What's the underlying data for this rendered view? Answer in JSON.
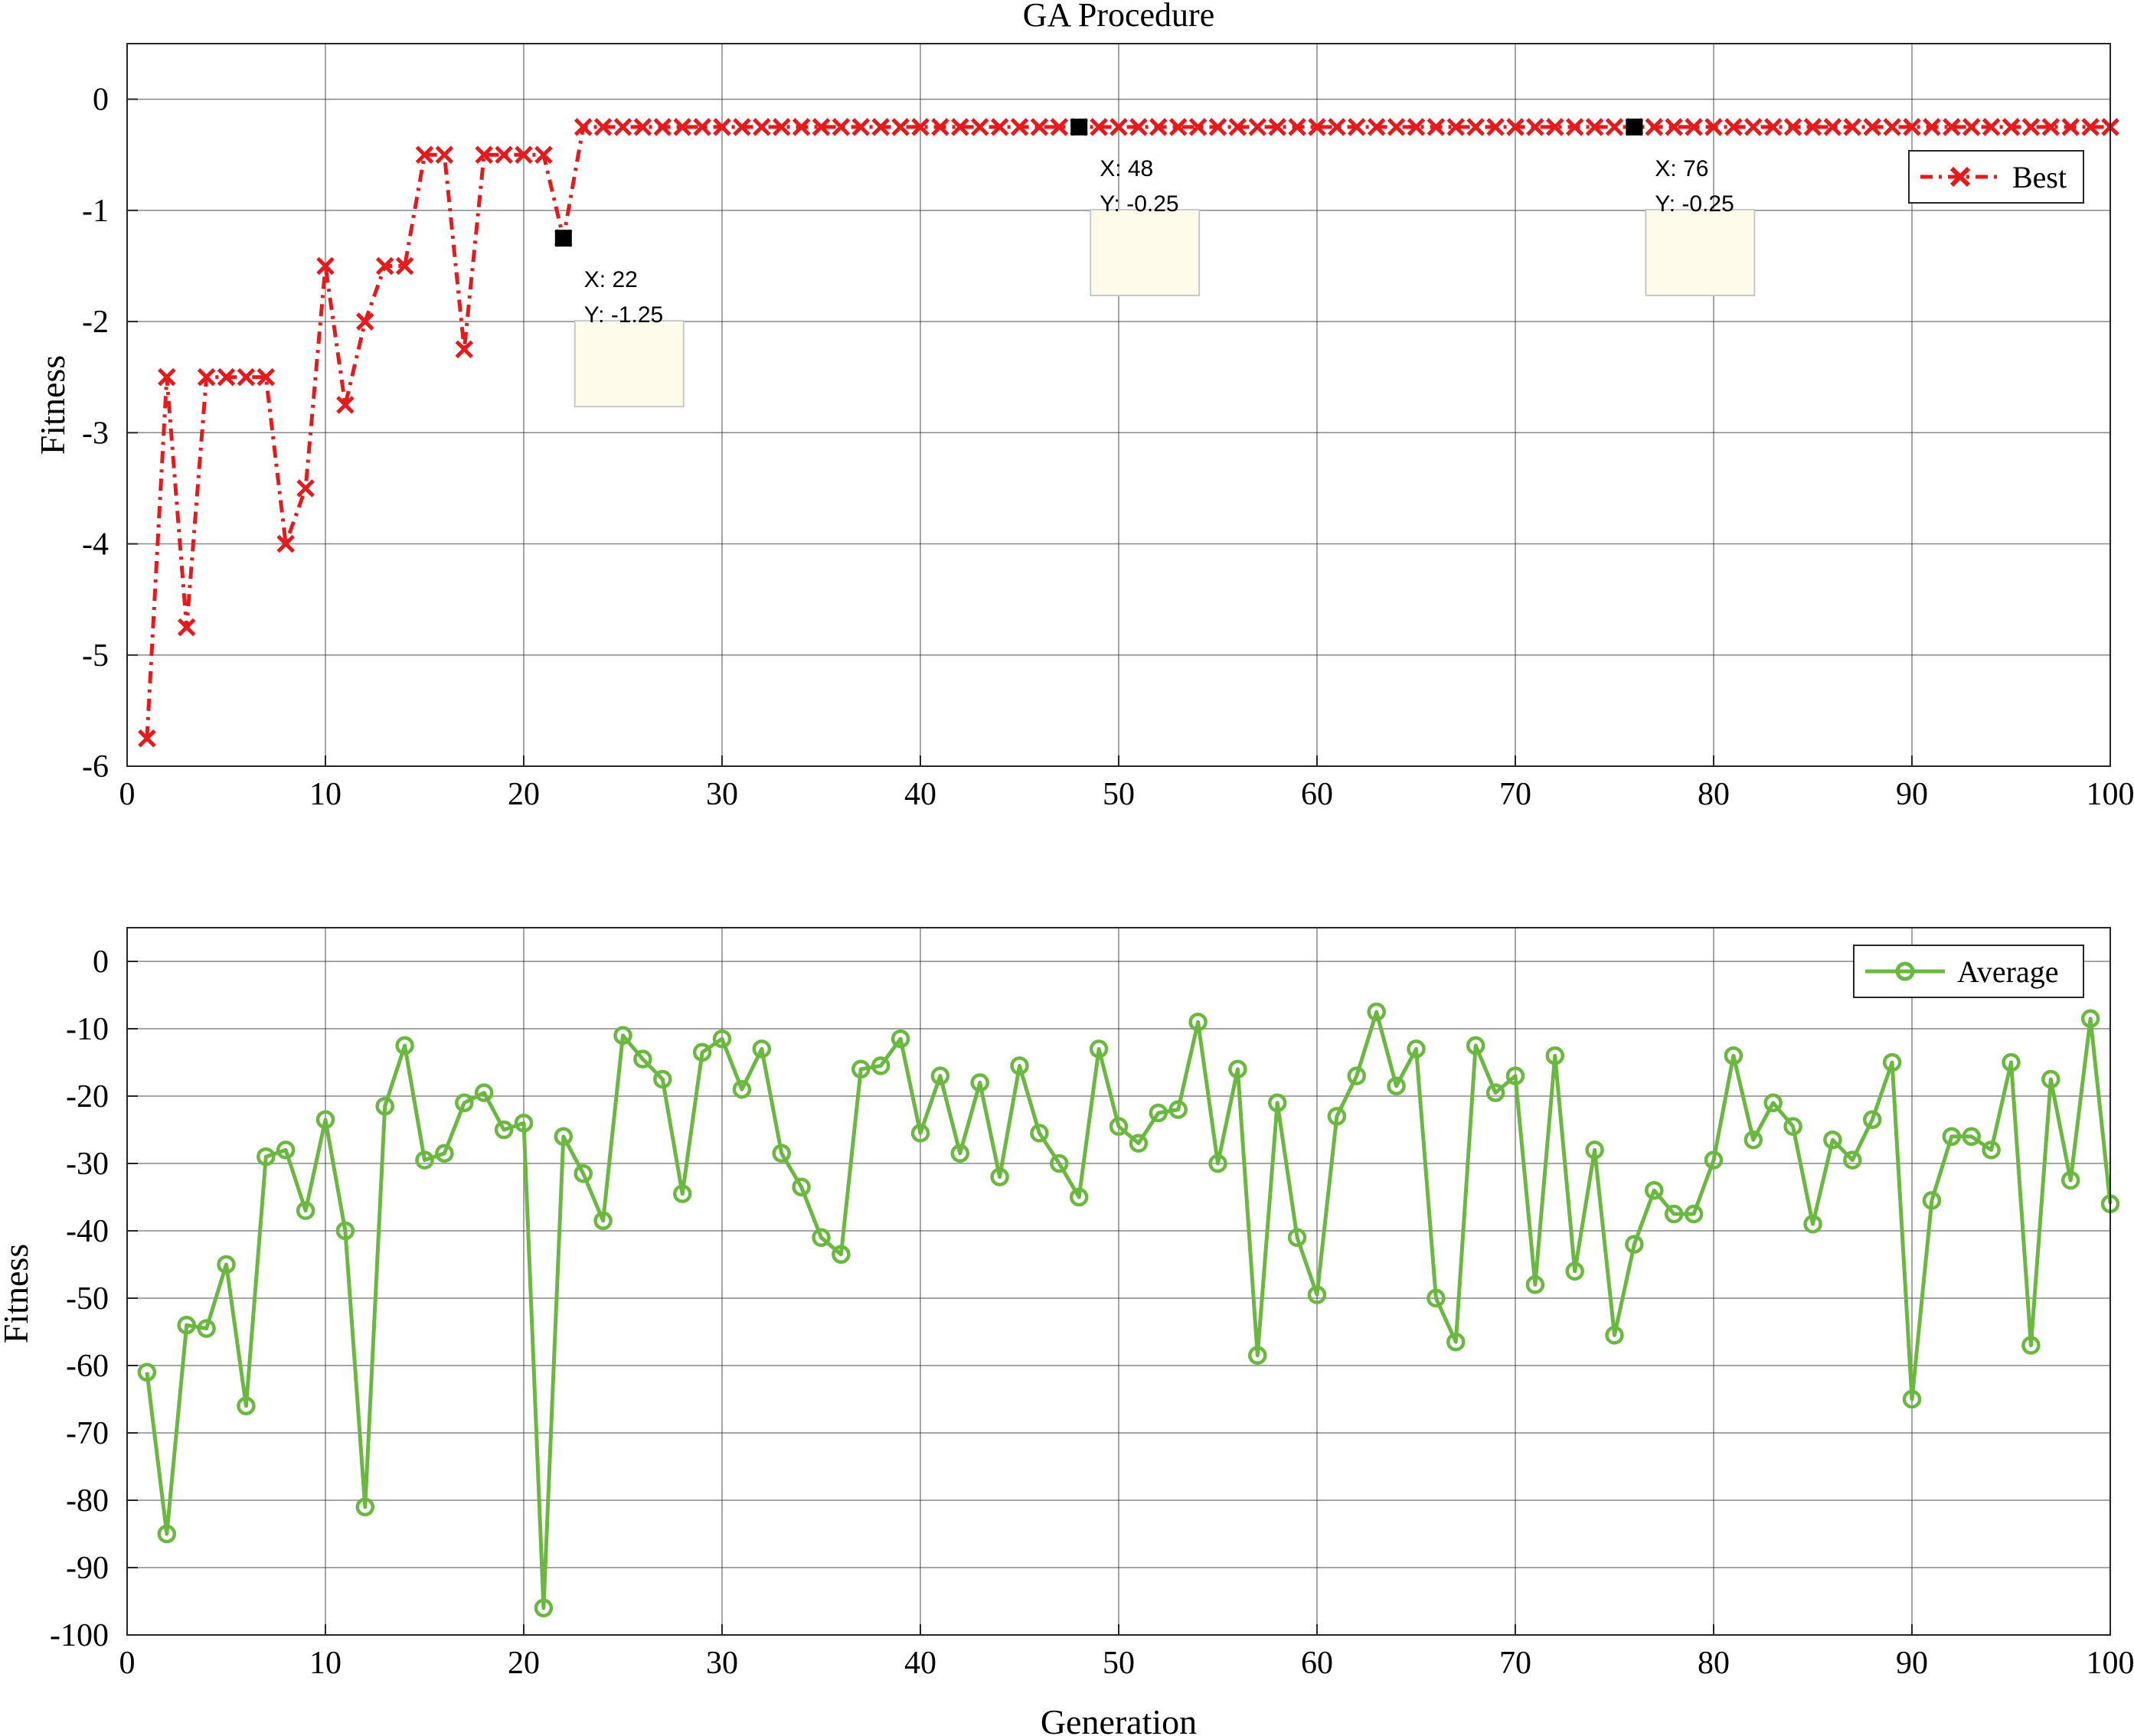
{
  "chart_data": [
    {
      "type": "line",
      "title": "GA Procedure",
      "xlabel": "",
      "ylabel": "Fitness",
      "xlim": [
        0,
        100
      ],
      "ylim": [
        -6,
        0.5
      ],
      "xticks": [
        0,
        10,
        20,
        30,
        40,
        50,
        60,
        70,
        80,
        90,
        100
      ],
      "yticks": [
        0,
        -1,
        -2,
        -3,
        -4,
        -5,
        -6
      ],
      "grid": true,
      "legend": "top-right",
      "series": [
        {
          "name": "Best",
          "color": "#e41a1c",
          "marker": "x",
          "line_style": "dash-dot",
          "x": [
            1,
            2,
            3,
            4,
            5,
            6,
            7,
            8,
            9,
            10,
            11,
            12,
            13,
            14,
            15,
            16,
            17,
            18,
            19,
            20,
            21,
            22,
            23,
            24,
            25,
            26,
            27,
            28,
            29,
            30,
            31,
            32,
            33,
            34,
            35,
            36,
            37,
            38,
            39,
            40,
            41,
            42,
            43,
            44,
            45,
            46,
            47,
            48,
            49,
            50,
            51,
            52,
            53,
            54,
            55,
            56,
            57,
            58,
            59,
            60,
            61,
            62,
            63,
            64,
            65,
            66,
            67,
            68,
            69,
            70,
            71,
            72,
            73,
            74,
            75,
            76,
            77,
            78,
            79,
            80,
            81,
            82,
            83,
            84,
            85,
            86,
            87,
            88,
            89,
            90,
            91,
            92,
            93,
            94,
            95,
            96,
            97,
            98,
            99,
            100
          ],
          "y": [
            -5.75,
            -2.5,
            -4.75,
            -2.5,
            -2.5,
            -2.5,
            -2.5,
            -4,
            -3.5,
            -1.5,
            -2.75,
            -2,
            -1.5,
            -1.5,
            -0.5,
            -0.5,
            -2.25,
            -0.5,
            -0.5,
            -0.5,
            -0.5,
            -1.25,
            -0.25,
            -0.25,
            -0.25,
            -0.25,
            -0.25,
            -0.25,
            -0.25,
            -0.25,
            -0.25,
            -0.25,
            -0.25,
            -0.25,
            -0.25,
            -0.25,
            -0.25,
            -0.25,
            -0.25,
            -0.25,
            -0.25,
            -0.25,
            -0.25,
            -0.25,
            -0.25,
            -0.25,
            -0.25,
            -0.25,
            -0.25,
            -0.25,
            -0.25,
            -0.25,
            -0.25,
            -0.25,
            -0.25,
            -0.25,
            -0.25,
            -0.25,
            -0.25,
            -0.25,
            -0.25,
            -0.25,
            -0.25,
            -0.25,
            -0.25,
            -0.25,
            -0.25,
            -0.25,
            -0.25,
            -0.25,
            -0.25,
            -0.25,
            -0.25,
            -0.25,
            -0.25,
            -0.25,
            -0.25,
            -0.25,
            -0.25,
            -0.25,
            -0.25,
            -0.25,
            -0.25,
            -0.25,
            -0.25,
            -0.25,
            -0.25,
            -0.25,
            -0.25,
            -0.25,
            -0.25,
            -0.25,
            -0.25,
            -0.25,
            -0.25,
            -0.25,
            -0.25,
            -0.25,
            -0.25,
            -0.25
          ]
        }
      ],
      "annotations": [
        {
          "x": 22,
          "y": -1.25,
          "label_x": "X: 22",
          "label_y": "Y: -1.25"
        },
        {
          "x": 48,
          "y": -0.25,
          "label_x": "X: 48",
          "label_y": "Y: -0.25"
        },
        {
          "x": 76,
          "y": -0.25,
          "label_x": "X: 76",
          "label_y": "Y: -0.25"
        }
      ]
    },
    {
      "type": "line",
      "title": "",
      "xlabel": "Generation",
      "ylabel": "Fitness",
      "xlim": [
        0,
        100
      ],
      "ylim": [
        -100,
        5
      ],
      "xticks": [
        0,
        10,
        20,
        30,
        40,
        50,
        60,
        70,
        80,
        90,
        100
      ],
      "yticks": [
        0,
        -10,
        -20,
        -30,
        -40,
        -50,
        -60,
        -70,
        -80,
        -90,
        -100
      ],
      "grid": true,
      "legend": "top-right",
      "series": [
        {
          "name": "Average",
          "color": "#6ab83f",
          "marker": "o",
          "line_style": "solid",
          "x": [
            1,
            2,
            3,
            4,
            5,
            6,
            7,
            8,
            9,
            10,
            11,
            12,
            13,
            14,
            15,
            16,
            17,
            18,
            19,
            20,
            21,
            22,
            23,
            24,
            25,
            26,
            27,
            28,
            29,
            30,
            31,
            32,
            33,
            34,
            35,
            36,
            37,
            38,
            39,
            40,
            41,
            42,
            43,
            44,
            45,
            46,
            47,
            48,
            49,
            50,
            51,
            52,
            53,
            54,
            55,
            56,
            57,
            58,
            59,
            60,
            61,
            62,
            63,
            64,
            65,
            66,
            67,
            68,
            69,
            70,
            71,
            72,
            73,
            74,
            75,
            76,
            77,
            78,
            79,
            80,
            81,
            82,
            83,
            84,
            85,
            86,
            87,
            88,
            89,
            90,
            91,
            92,
            93,
            94,
            95,
            96,
            97,
            98,
            99,
            100
          ],
          "y": [
            -61,
            -85,
            -54,
            -54.5,
            -45,
            -66,
            -29,
            -28,
            -37,
            -23.5,
            -40,
            -81,
            -21.5,
            -12.5,
            -29.5,
            -28.5,
            -21,
            -19.5,
            -25,
            -24,
            -96,
            -26,
            -31.5,
            -38.5,
            -11,
            -14.5,
            -17.5,
            -34.5,
            -13.5,
            -11.5,
            -19,
            -13,
            -28.5,
            -33.5,
            -41,
            -43.5,
            -16,
            -15.5,
            -11.5,
            -25.5,
            -17,
            -28.5,
            -18,
            -32,
            -15.5,
            -25.5,
            -30,
            -35,
            -13,
            -24.5,
            -27,
            -22.5,
            -22,
            -9,
            -30,
            -16,
            -58.5,
            -21,
            -41,
            -49.5,
            -23,
            -17,
            -7.5,
            -18.5,
            -13,
            -50,
            -56.5,
            -12.5,
            -19.5,
            -17,
            -48,
            -14,
            -46,
            -28,
            -55.5,
            -42,
            -34,
            -37.5,
            -37.5,
            -29.5,
            -14,
            -26.5,
            -21,
            -24.5,
            -39,
            -26.5,
            -29.5,
            -23.5,
            -15,
            -65,
            -35.5,
            -26,
            -26,
            -28,
            -15,
            -57,
            -17.5,
            -32.5,
            -8.5,
            -36
          ]
        }
      ]
    }
  ]
}
